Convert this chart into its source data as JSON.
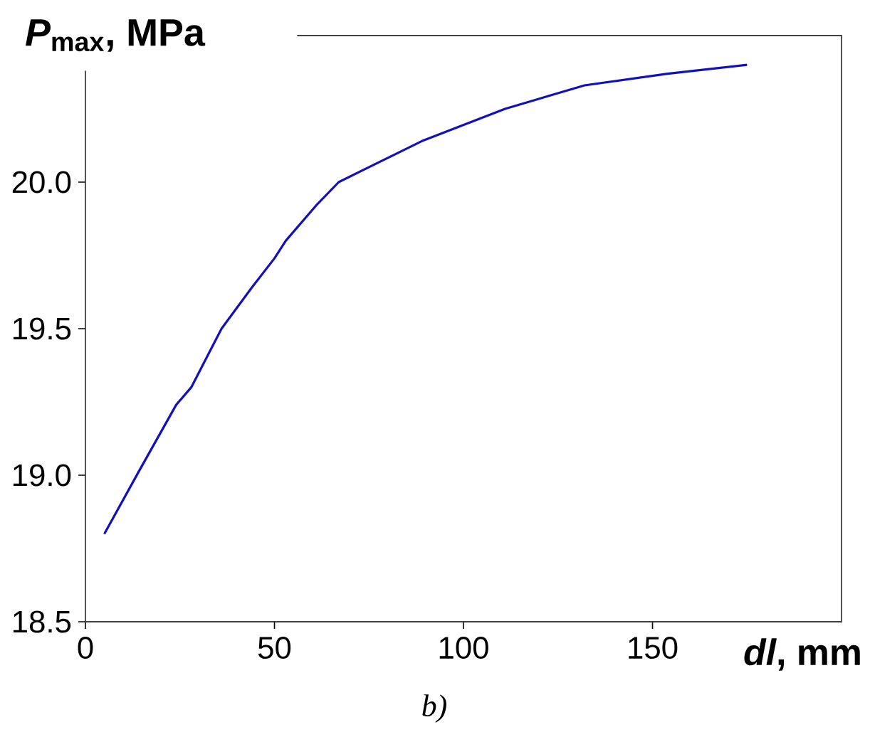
{
  "chart_data": {
    "type": "line",
    "ylabel": "*P*$_{max}$, MPa",
    "xlabel": "*dl*, mm",
    "annotations": [
      "b)"
    ],
    "xlim": [
      0,
      200
    ],
    "ylim": [
      18.5,
      20.5
    ],
    "xticks": [
      0,
      50,
      100,
      150
    ],
    "yticks": [
      {
        "value": 18.5,
        "label": "18.5"
      },
      {
        "value": 19,
        "label": "19.0"
      },
      {
        "value": 19.5,
        "label": "19.5"
      },
      {
        "value": 20,
        "label": "20.0"
      }
    ],
    "x": [
      5,
      14,
      24,
      28,
      36,
      44,
      50,
      53,
      61,
      67,
      89,
      111,
      132,
      154,
      175
    ],
    "series": [
      {
        "color": "#1010c0",
        "values": [
          18.8,
          19.01,
          19.24,
          19.3,
          19.5,
          19.64,
          19.74,
          19.8,
          19.92,
          20.0,
          20.14,
          20.25,
          20.33,
          20.37,
          20.4
        ]
      }
    ],
    "marker": "none",
    "line_style": "solid"
  }
}
